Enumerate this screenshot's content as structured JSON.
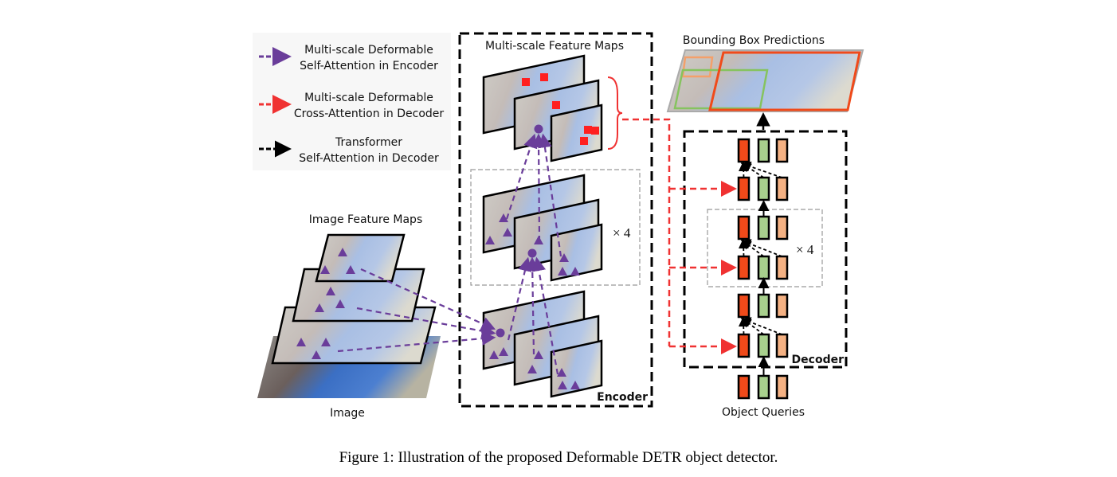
{
  "legend": {
    "items": [
      {
        "line1": "Multi-scale Deformable",
        "line2": "Self-Attention in Encoder",
        "color": "#6a3d9a"
      },
      {
        "line1": "Multi-scale Deformable",
        "line2": "Cross-Attention in Decoder",
        "color": "#f03232"
      },
      {
        "line1": "Transformer",
        "line2": "Self-Attention in Decoder",
        "color": "#000000"
      }
    ]
  },
  "labels": {
    "image_feature_maps": "Image Feature Maps",
    "image": "Image",
    "multi_scale_feature_maps": "Multi-scale Feature Maps",
    "encoder": "Encoder",
    "encoder_repeat": "× 4",
    "bounding_box_predictions": "Bounding Box Predictions",
    "decoder": "Decoder",
    "decoder_repeat": "× 4",
    "object_queries": "Object Queries"
  },
  "caption": "Figure 1: Illustration of the proposed Deformable DETR object detector.",
  "colors": {
    "query_red": "#f04a1a",
    "query_green": "#a8d08d",
    "query_peach": "#f4b183",
    "attention_purple": "#6a3d9a",
    "cross_attention_red": "#f03232",
    "sampling_point_red": "#ff2020"
  }
}
